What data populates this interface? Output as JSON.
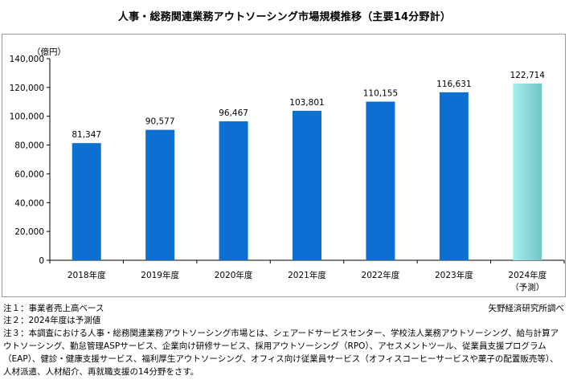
{
  "title": "人事・総務関連業務アウトソーシング市場規模推移（主要14分野計）",
  "notes": {
    "note1": "注１：事業者売上高ベース",
    "note2": "注２：2024年度は予測値",
    "note3": "注３：本調査における人事・総務関連業務アウトソーシング市場とは、シェアードサービスセンター、学校法人業務アウトソーシング、給与計算アウトソーシング、勤怠管理ASPサービス、企業向け研修サービス、採用アウトソーシング（RPO）、アセスメントツール、従業員支援プログラム（EAP）、健診・健康支援サービス、福利厚生アウトソーシング、オフィス向け従業員サービス（オフィスコーヒーサービスや菓子の配置販売等）、人材派遣、人材紹介、再就職支援の14分野をさす。",
    "source": "矢野経済研究所調べ"
  },
  "colors": {
    "actual_bar": "#0d6fd2",
    "forecast_bar_start": "#a8ecec",
    "forecast_bar_end": "#6fc7c9",
    "axis": "#000000"
  },
  "chart_data": {
    "type": "bar",
    "unit_label": "（億円）",
    "categories": [
      "2018年度",
      "2019年度",
      "2020年度",
      "2021年度",
      "2022年度",
      "2023年度",
      "2024年度"
    ],
    "category_sublabels": [
      "",
      "",
      "",
      "",
      "",
      "",
      "（予測）"
    ],
    "values": [
      81347,
      90577,
      96467,
      103801,
      110155,
      116631,
      122714
    ],
    "value_labels": [
      "81,347",
      "90,577",
      "96,467",
      "103,801",
      "110,155",
      "116,631",
      "122,714"
    ],
    "forecast": [
      false,
      false,
      false,
      false,
      false,
      false,
      true
    ],
    "ylim": [
      0,
      140000
    ],
    "yticks": [
      0,
      20000,
      40000,
      60000,
      80000,
      100000,
      120000,
      140000
    ],
    "ytick_labels": [
      "0",
      "20,000",
      "40,000",
      "60,000",
      "80,000",
      "100,000",
      "120,000",
      "140,000"
    ],
    "grid": false,
    "legend": "none"
  }
}
